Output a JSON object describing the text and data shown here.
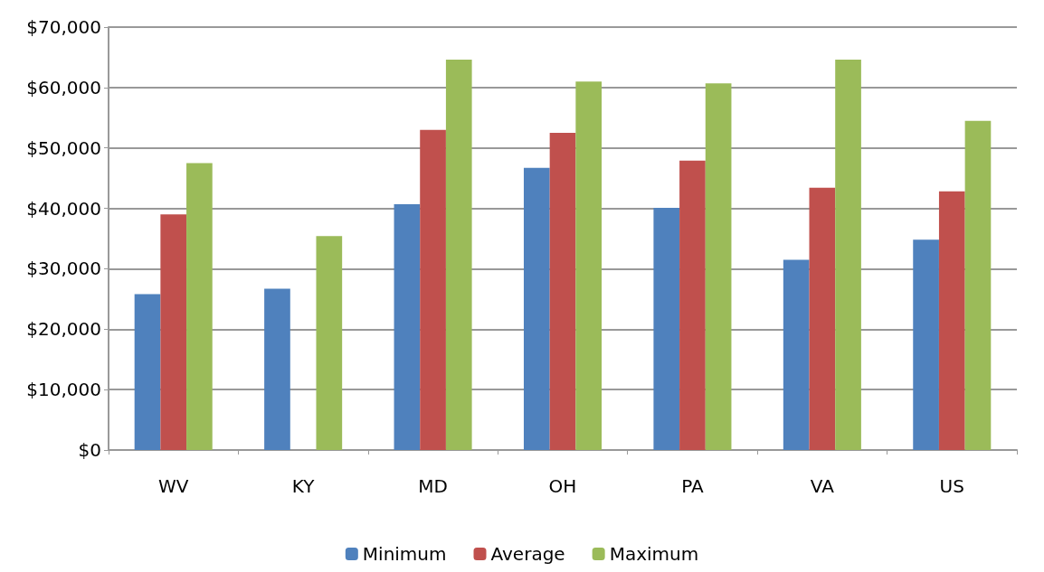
{
  "chart_data": {
    "type": "bar",
    "categories": [
      "WV",
      "KY",
      "MD",
      "OH",
      "PA",
      "VA",
      "US"
    ],
    "series": [
      {
        "name": "Minimum",
        "color": "#4f81bd",
        "values": [
          25800,
          26700,
          40700,
          46700,
          40100,
          31500,
          34800
        ]
      },
      {
        "name": "Average",
        "color": "#c0504d",
        "values": [
          39000,
          null,
          53000,
          52500,
          47900,
          43400,
          42800
        ]
      },
      {
        "name": "Maximum",
        "color": "#9bbb59",
        "values": [
          47500,
          35400,
          64600,
          61000,
          60700,
          64600,
          54500
        ]
      }
    ],
    "ylim": [
      0,
      70000
    ],
    "yticks": [
      {
        "value": 0,
        "label": "$0"
      },
      {
        "value": 10000,
        "label": "$10,000"
      },
      {
        "value": 20000,
        "label": "$20,000"
      },
      {
        "value": 30000,
        "label": "$30,000"
      },
      {
        "value": 40000,
        "label": "$40,000"
      },
      {
        "value": 50000,
        "label": "$50,000"
      },
      {
        "value": 60000,
        "label": "$60,000"
      },
      {
        "value": 70000,
        "label": "$70,000"
      }
    ],
    "grid": "y",
    "legend": "bottom"
  }
}
